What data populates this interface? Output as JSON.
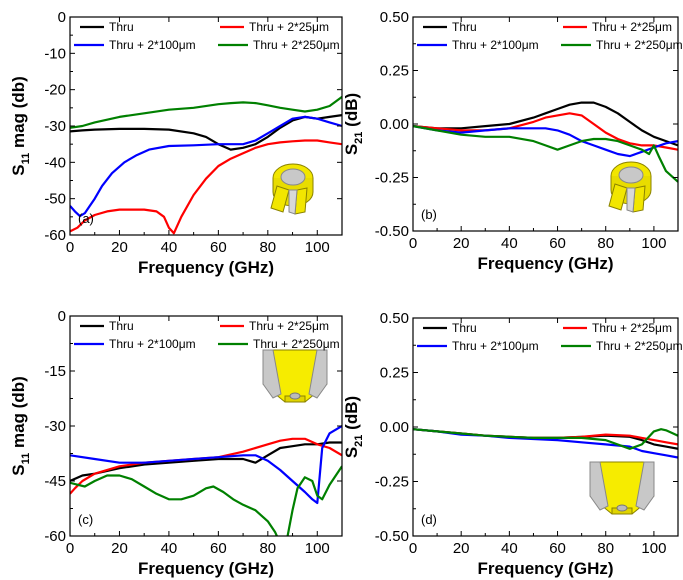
{
  "chart_data": [
    {
      "type": "line",
      "panel_label": "(a)",
      "xlabel": "Frequency (GHz)",
      "ylabel": {
        "main": "S",
        "sub": "11",
        "rest": " mag (db)"
      },
      "xlim": [
        0,
        110
      ],
      "ylim": [
        -60,
        0
      ],
      "xticks": [
        0,
        20,
        40,
        60,
        80,
        100
      ],
      "yticks": [
        0,
        -10,
        -20,
        -30,
        -40,
        -50,
        -60
      ],
      "ytick_labels": [
        "0",
        "-10",
        "-20",
        "-30",
        "-40",
        "-50",
        "-60"
      ],
      "grid": false,
      "legend": "top",
      "inset": "cylinder-probe-icon",
      "series": [
        {
          "name": "Thru",
          "color": "#000000",
          "x": [
            0,
            5,
            10,
            20,
            30,
            40,
            50,
            55,
            60,
            65,
            70,
            75,
            80,
            85,
            90,
            95,
            100,
            105,
            110
          ],
          "y": [
            -31.5,
            -31.2,
            -31,
            -30.8,
            -30.8,
            -31,
            -32,
            -33,
            -35,
            -36.5,
            -36,
            -35,
            -33,
            -30.5,
            -28.5,
            -27.5,
            -28,
            -27.5,
            -27
          ]
        },
        {
          "name": "Thru + 2*25μm",
          "color": "#ff0000",
          "x": [
            0,
            3,
            6,
            10,
            15,
            20,
            25,
            30,
            35,
            38,
            40,
            42,
            45,
            50,
            55,
            60,
            65,
            70,
            75,
            80,
            85,
            90,
            95,
            100,
            105,
            110
          ],
          "y": [
            -59,
            -58,
            -56,
            -54.5,
            -53.5,
            -53,
            -53,
            -53,
            -53.5,
            -55,
            -58,
            -59.5,
            -55,
            -49,
            -44.5,
            -41,
            -39,
            -37.5,
            -36,
            -35,
            -34.5,
            -34.2,
            -34,
            -34,
            -34.5,
            -35
          ]
        },
        {
          "name": "Thru + 2*100μm",
          "color": "#0000ff",
          "x": [
            0,
            2,
            4,
            6,
            8,
            10,
            13,
            17,
            22,
            27,
            32,
            40,
            50,
            60,
            70,
            75,
            80,
            85,
            90,
            95,
            100,
            105,
            110
          ],
          "y": [
            -52,
            -53.5,
            -54.8,
            -54,
            -52,
            -50,
            -46.5,
            -43,
            -40,
            -38,
            -36.5,
            -35.5,
            -35.3,
            -35,
            -35,
            -34,
            -32,
            -30,
            -28,
            -27.5,
            -28,
            -29,
            -30
          ]
        },
        {
          "name": "Thru + 2*250μm",
          "color": "#008000",
          "x": [
            0,
            5,
            10,
            20,
            30,
            40,
            50,
            60,
            65,
            70,
            75,
            80,
            85,
            90,
            95,
            100,
            105,
            110
          ],
          "y": [
            -30.5,
            -30,
            -29,
            -27.5,
            -26.5,
            -25.5,
            -25,
            -24,
            -23.7,
            -23.5,
            -23.7,
            -24.3,
            -25,
            -25.5,
            -26,
            -25.5,
            -24.5,
            -22
          ]
        }
      ]
    },
    {
      "type": "line",
      "panel_label": "(b)",
      "xlabel": "Frequency (GHz)",
      "ylabel": {
        "main": "S",
        "sub": "21",
        "rest": " (dB)"
      },
      "xlim": [
        0,
        110
      ],
      "ylim": [
        -0.5,
        0.5
      ],
      "xticks": [
        0,
        20,
        40,
        60,
        80,
        100
      ],
      "yticks": [
        0.5,
        0.25,
        0,
        -0.25,
        -0.5
      ],
      "ytick_labels": [
        "0.50",
        "0.25",
        "0.00",
        "-0.25",
        "-0.50"
      ],
      "grid": false,
      "legend": "top",
      "inset": "cylinder-probe-icon",
      "series": [
        {
          "name": "Thru",
          "color": "#000000",
          "x": [
            0,
            10,
            20,
            30,
            40,
            50,
            55,
            60,
            65,
            70,
            75,
            80,
            85,
            90,
            95,
            100,
            105,
            110
          ],
          "y": [
            -0.01,
            -0.02,
            -0.02,
            -0.01,
            0.0,
            0.03,
            0.05,
            0.07,
            0.09,
            0.1,
            0.1,
            0.08,
            0.05,
            0.01,
            -0.03,
            -0.06,
            -0.08,
            -0.1
          ]
        },
        {
          "name": "Thru + 2*25μm",
          "color": "#ff0000",
          "x": [
            0,
            10,
            20,
            30,
            40,
            50,
            55,
            60,
            65,
            70,
            75,
            80,
            85,
            90,
            95,
            100,
            105,
            110
          ],
          "y": [
            -0.01,
            -0.02,
            -0.03,
            -0.03,
            -0.02,
            0.01,
            0.03,
            0.04,
            0.05,
            0.04,
            0.0,
            -0.04,
            -0.07,
            -0.09,
            -0.1,
            -0.1,
            -0.11,
            -0.12
          ]
        },
        {
          "name": "Thru + 2*100μm",
          "color": "#0000ff",
          "x": [
            0,
            10,
            20,
            30,
            40,
            50,
            55,
            60,
            65,
            70,
            75,
            80,
            85,
            90,
            95,
            100,
            105,
            110
          ],
          "y": [
            -0.01,
            -0.03,
            -0.04,
            -0.03,
            -0.02,
            -0.02,
            -0.02,
            -0.03,
            -0.05,
            -0.08,
            -0.1,
            -0.12,
            -0.14,
            -0.15,
            -0.13,
            -0.11,
            -0.09,
            -0.08
          ]
        },
        {
          "name": "Thru + 2*250μm",
          "color": "#008000",
          "x": [
            0,
            10,
            20,
            30,
            40,
            50,
            55,
            60,
            65,
            70,
            75,
            80,
            85,
            90,
            95,
            98,
            100,
            102,
            105,
            110
          ],
          "y": [
            -0.01,
            -0.03,
            -0.05,
            -0.06,
            -0.06,
            -0.08,
            -0.1,
            -0.12,
            -0.1,
            -0.08,
            -0.07,
            -0.07,
            -0.08,
            -0.1,
            -0.12,
            -0.14,
            -0.1,
            -0.15,
            -0.22,
            -0.27
          ]
        }
      ]
    },
    {
      "type": "line",
      "panel_label": "(c)",
      "xlabel": "Frequency (GHz)",
      "ylabel": {
        "main": "S",
        "sub": "11",
        "rest": " mag (db)"
      },
      "xlim": [
        0,
        110
      ],
      "ylim": [
        -60,
        0
      ],
      "xticks": [
        0,
        20,
        40,
        60,
        80,
        100
      ],
      "yticks": [
        0,
        -15,
        -30,
        -45,
        -60
      ],
      "ytick_labels": [
        "0",
        "-15",
        "-30",
        "-45",
        "-60"
      ],
      "grid": false,
      "legend": "top",
      "inset": "tapered-probe-icon",
      "series": [
        {
          "name": "Thru",
          "color": "#000000",
          "x": [
            0,
            5,
            10,
            20,
            30,
            40,
            50,
            60,
            70,
            75,
            80,
            85,
            90,
            95,
            100,
            105,
            110
          ],
          "y": [
            -45,
            -43.5,
            -43,
            -41.5,
            -40.5,
            -40,
            -39.5,
            -39,
            -39,
            -40,
            -38,
            -36,
            -35.5,
            -35,
            -35,
            -34.5,
            -34.5
          ]
        },
        {
          "name": "Thru + 2*25μm",
          "color": "#ff0000",
          "x": [
            0,
            2,
            5,
            10,
            20,
            30,
            40,
            50,
            60,
            70,
            80,
            85,
            90,
            95,
            100,
            105,
            110
          ],
          "y": [
            -48.5,
            -47,
            -45,
            -43,
            -41,
            -40,
            -39.5,
            -39,
            -38.5,
            -37,
            -35,
            -34,
            -33.5,
            -33.5,
            -35,
            -36,
            -38
          ]
        },
        {
          "name": "Thru + 2*100μm",
          "color": "#0000ff",
          "x": [
            0,
            10,
            20,
            30,
            40,
            50,
            60,
            70,
            75,
            80,
            85,
            90,
            95,
            98,
            100,
            102,
            105,
            110
          ],
          "y": [
            -38,
            -39,
            -40,
            -40,
            -39.5,
            -39,
            -38.5,
            -38,
            -38,
            -39.5,
            -42,
            -45,
            -48,
            -50,
            -51,
            -36,
            -32,
            -30
          ]
        },
        {
          "name": "Thru + 2*250μm",
          "color": "#008000",
          "x": [
            0,
            3,
            6,
            10,
            15,
            20,
            25,
            30,
            35,
            40,
            45,
            50,
            55,
            58,
            62,
            66,
            70,
            75,
            80,
            83,
            85,
            87,
            88,
            90,
            92,
            95,
            98,
            100,
            102,
            105,
            110
          ],
          "y": [
            -45.5,
            -46,
            -46.5,
            -45,
            -43.5,
            -43.5,
            -44.5,
            -46.5,
            -48.5,
            -50,
            -50,
            -49,
            -47,
            -46.5,
            -48,
            -50,
            -51.5,
            -53,
            -56,
            -59,
            -62,
            -62,
            -60,
            -53,
            -47,
            -44,
            -45,
            -49,
            -50,
            -46,
            -41
          ]
        }
      ]
    },
    {
      "type": "line",
      "panel_label": "(d)",
      "xlabel": "Frequency (GHz)",
      "ylabel": {
        "main": "S",
        "sub": "21",
        "rest": " (dB)"
      },
      "xlim": [
        0,
        110
      ],
      "ylim": [
        -0.5,
        0.5
      ],
      "xticks": [
        0,
        20,
        40,
        60,
        80,
        100
      ],
      "yticks": [
        0.5,
        0.25,
        0,
        -0.25,
        -0.5
      ],
      "ytick_labels": [
        "0.50",
        "0.25",
        "0.00",
        "-0.25",
        "-0.50"
      ],
      "grid": false,
      "legend": "top",
      "inset": "tapered-probe-icon",
      "series": [
        {
          "name": "Thru",
          "color": "#000000",
          "x": [
            0,
            10,
            20,
            30,
            40,
            50,
            60,
            70,
            80,
            90,
            95,
            100,
            105,
            110
          ],
          "y": [
            -0.01,
            -0.02,
            -0.03,
            -0.04,
            -0.045,
            -0.05,
            -0.05,
            -0.045,
            -0.04,
            -0.045,
            -0.06,
            -0.08,
            -0.09,
            -0.1
          ]
        },
        {
          "name": "Thru + 2*25μm",
          "color": "#ff0000",
          "x": [
            0,
            10,
            20,
            30,
            40,
            50,
            60,
            70,
            80,
            90,
            95,
            100,
            105,
            110
          ],
          "y": [
            -0.01,
            -0.02,
            -0.03,
            -0.04,
            -0.045,
            -0.05,
            -0.05,
            -0.045,
            -0.035,
            -0.04,
            -0.05,
            -0.06,
            -0.07,
            -0.08
          ]
        },
        {
          "name": "Thru + 2*100μm",
          "color": "#0000ff",
          "x": [
            0,
            10,
            20,
            30,
            40,
            50,
            60,
            70,
            80,
            90,
            95,
            100,
            105,
            110
          ],
          "y": [
            -0.01,
            -0.02,
            -0.035,
            -0.04,
            -0.05,
            -0.055,
            -0.06,
            -0.07,
            -0.08,
            -0.09,
            -0.11,
            -0.12,
            -0.13,
            -0.14
          ]
        },
        {
          "name": "Thru + 2*250μm",
          "color": "#008000",
          "x": [
            0,
            10,
            20,
            30,
            40,
            50,
            60,
            70,
            80,
            90,
            95,
            100,
            103,
            105,
            108,
            110
          ],
          "y": [
            -0.01,
            -0.02,
            -0.03,
            -0.04,
            -0.045,
            -0.05,
            -0.05,
            -0.05,
            -0.06,
            -0.1,
            -0.08,
            -0.02,
            -0.01,
            -0.015,
            -0.03,
            -0.04
          ]
        }
      ]
    }
  ]
}
